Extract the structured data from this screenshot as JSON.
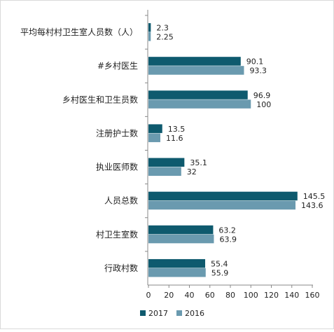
{
  "chart_data": {
    "type": "bar",
    "orientation": "horizontal",
    "categories": [
      "平均每村村卫生室人员数（人）",
      "#乡村医生",
      "乡村医生和卫生员数",
      "注册护士数",
      "执业医师数",
      "人员总数",
      "村卫生室数",
      "行政村数"
    ],
    "series": [
      {
        "name": "2017",
        "values": [
          2.3,
          90.1,
          96.9,
          13.5,
          35.1,
          145.5,
          63.2,
          55.4
        ],
        "labels": [
          "2.3",
          "90.1",
          "96.9",
          "13.5",
          "35.1",
          "145.5",
          "63.2",
          "55.4"
        ],
        "color": "#0e5a6e"
      },
      {
        "name": "2016",
        "values": [
          2.25,
          93.3,
          100,
          11.6,
          32,
          143.6,
          63.9,
          55.9
        ],
        "labels": [
          "2.25",
          "93.3",
          "100",
          "11.6",
          "32",
          "143.6",
          "63.9",
          "55.9"
        ],
        "color": "#6a9aaf"
      }
    ],
    "xlim": [
      0,
      160
    ],
    "xticks": [
      "0",
      "20",
      "40",
      "60",
      "80",
      "100",
      "120",
      "140",
      "160"
    ],
    "grid": false,
    "legend_position": "bottom",
    "title": "",
    "xlabel": "",
    "ylabel": ""
  }
}
